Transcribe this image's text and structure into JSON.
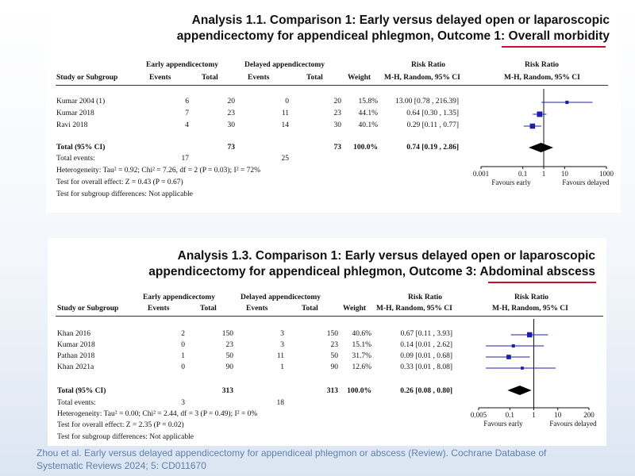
{
  "analysis1": {
    "title_line1": "Analysis 1.1.   Comparison 1: Early versus delayed open or laparoscopic",
    "title_line2": "appendicectomy for appendiceal phlegmon, Outcome 1: ",
    "title_highlight": "Overall morbidity",
    "headers": {
      "group1": "Early appendicectomy",
      "group2": "Delayed appendicectomy",
      "rr": "Risk Ratio",
      "rr2": "Risk Ratio",
      "study": "Study or Subgroup",
      "events1": "Events",
      "total1": "Total",
      "events2": "Events",
      "total2": "Total",
      "weight": "Weight",
      "method": "M-H, Random, 95% CI",
      "method2": "M-H, Random, 95% CI"
    },
    "rows": [
      {
        "study": "Kumar 2004 (1)",
        "e1": "6",
        "t1": "20",
        "e2": "0",
        "t2": "20",
        "weight": "15.8%",
        "ci": "13.00 [0.78 , 216.39]"
      },
      {
        "study": "Kumar 2018",
        "e1": "7",
        "t1": "23",
        "e2": "11",
        "t2": "23",
        "weight": "44.1%",
        "ci": "0.64 [0.30 , 1.35]"
      },
      {
        "study": "Ravi 2018",
        "e1": "4",
        "t1": "30",
        "e2": "14",
        "t2": "30",
        "weight": "40.1%",
        "ci": "0.29 [0.11 , 0.77]"
      }
    ],
    "total": {
      "label": "Total (95% CI)",
      "t1": "73",
      "t2": "73",
      "weight": "100.0%",
      "ci": "0.74 [0.19 , 2.86]"
    },
    "total_events": {
      "label": "Total events:",
      "e1": "17",
      "e2": "25"
    },
    "heterogeneity": "Heterogeneity: Tau² = 0.92; Chi² = 7.26, df = 2 (P = 0.03); I² = 72%",
    "overall_effect": "Test for overall effect: Z = 0.43 (P = 0.67)",
    "subgroup": "Test for subgroup differences: Not applicable",
    "favours_left": "Favours early",
    "favours_right": "Favours delayed"
  },
  "analysis2": {
    "title_line1": "Analysis 1.3.   Comparison 1: Early versus delayed open or laparoscopic",
    "title_line2": "appendicectomy for appendiceal phlegmon, Outcome 3: ",
    "title_highlight": "Abdominal abscess",
    "headers": {
      "group1": "Early appendicectomy",
      "group2": "Delayed appendicectomy",
      "rr": "Risk Ratio",
      "rr2": "Risk Ratio",
      "study": "Study or Subgroup",
      "events1": "Events",
      "total1": "Total",
      "events2": "Events",
      "total2": "Total",
      "weight": "Weight",
      "method": "M-H, Random, 95% CI",
      "method2": "M-H, Random, 95% CI"
    },
    "rows": [
      {
        "study": "Khan 2016",
        "e1": "2",
        "t1": "150",
        "e2": "3",
        "t2": "150",
        "weight": "40.6%",
        "ci": "0.67 [0.11 , 3.93]"
      },
      {
        "study": "Kumar 2018",
        "e1": "0",
        "t1": "23",
        "e2": "3",
        "t2": "23",
        "weight": "15.1%",
        "ci": "0.14 [0.01 , 2.62]"
      },
      {
        "study": "Pathan 2018",
        "e1": "1",
        "t1": "50",
        "e2": "11",
        "t2": "50",
        "weight": "31.7%",
        "ci": "0.09 [0.01 , 0.68]"
      },
      {
        "study": "Khan 2021a",
        "e1": "0",
        "t1": "90",
        "e2": "1",
        "t2": "90",
        "weight": "12.6%",
        "ci": "0.33 [0.01 , 8.08]"
      }
    ],
    "total": {
      "label": "Total (95% CI)",
      "t1": "313",
      "t2": "313",
      "weight": "100.0%",
      "ci": "0.26 [0.08 , 0.80]"
    },
    "total_events": {
      "label": "Total events:",
      "e1": "3",
      "e2": "18"
    },
    "heterogeneity": "Heterogeneity: Tau² = 0.00; Chi² = 2.44, df = 3 (P = 0.49); I² = 0%",
    "overall_effect": "Test for overall effect: Z = 2.35 (P = 0.02)",
    "subgroup": "Test for subgroup differences: Not applicable",
    "favours_left": "Favours early",
    "favours_right": "Favours delayed"
  },
  "citation": "Zhou et al. Early versus delayed appendicectomy for appendiceal phlegmon or abscess (Review). Cochrane Database of Systematic Reviews 2024; 5: CD011670",
  "colors": {
    "highlight_underline": "#c8102e",
    "marker": "#1f1fa8",
    "citation": "#5e82b0"
  },
  "chart_data": [
    {
      "type": "scatter",
      "subtype": "forest",
      "title": "Analysis 1.1. Comparison 1: Early versus delayed open or laparoscopic appendicectomy for appendiceal phlegmon, Outcome 1: Overall morbidity",
      "xscale": "log",
      "xlim": [
        0.001,
        1000
      ],
      "xticks": [
        0.001,
        0.1,
        1,
        10,
        1000
      ],
      "xtick_labels": [
        "0.001",
        "0.1",
        "1",
        "10",
        "1000"
      ],
      "studies": [
        {
          "name": "Kumar 2004 (1)",
          "rr": 13.0,
          "lo": 0.78,
          "hi": 216.39,
          "weight": 15.8
        },
        {
          "name": "Kumar 2018",
          "rr": 0.64,
          "lo": 0.3,
          "hi": 1.35,
          "weight": 44.1
        },
        {
          "name": "Ravi 2018",
          "rr": 0.29,
          "lo": 0.11,
          "hi": 0.77,
          "weight": 40.1
        }
      ],
      "pooled": {
        "rr": 0.74,
        "lo": 0.19,
        "hi": 2.86
      }
    },
    {
      "type": "scatter",
      "subtype": "forest",
      "title": "Analysis 1.3. Comparison 1: Early versus delayed open or laparoscopic appendicectomy for appendiceal phlegmon, Outcome 3: Abdominal abscess",
      "xscale": "log",
      "xlim": [
        0.005,
        200
      ],
      "xticks": [
        0.005,
        0.1,
        1,
        10,
        200
      ],
      "xtick_labels": [
        "0.005",
        "0.1",
        "1",
        "10",
        "200"
      ],
      "studies": [
        {
          "name": "Khan 2016",
          "rr": 0.67,
          "lo": 0.11,
          "hi": 3.93,
          "weight": 40.6
        },
        {
          "name": "Kumar 2018",
          "rr": 0.14,
          "lo": 0.01,
          "hi": 2.62,
          "weight": 15.1
        },
        {
          "name": "Pathan 2018",
          "rr": 0.09,
          "lo": 0.01,
          "hi": 0.68,
          "weight": 31.7
        },
        {
          "name": "Khan 2021a",
          "rr": 0.33,
          "lo": 0.01,
          "hi": 8.08,
          "weight": 12.6
        }
      ],
      "pooled": {
        "rr": 0.26,
        "lo": 0.08,
        "hi": 0.8
      }
    }
  ]
}
